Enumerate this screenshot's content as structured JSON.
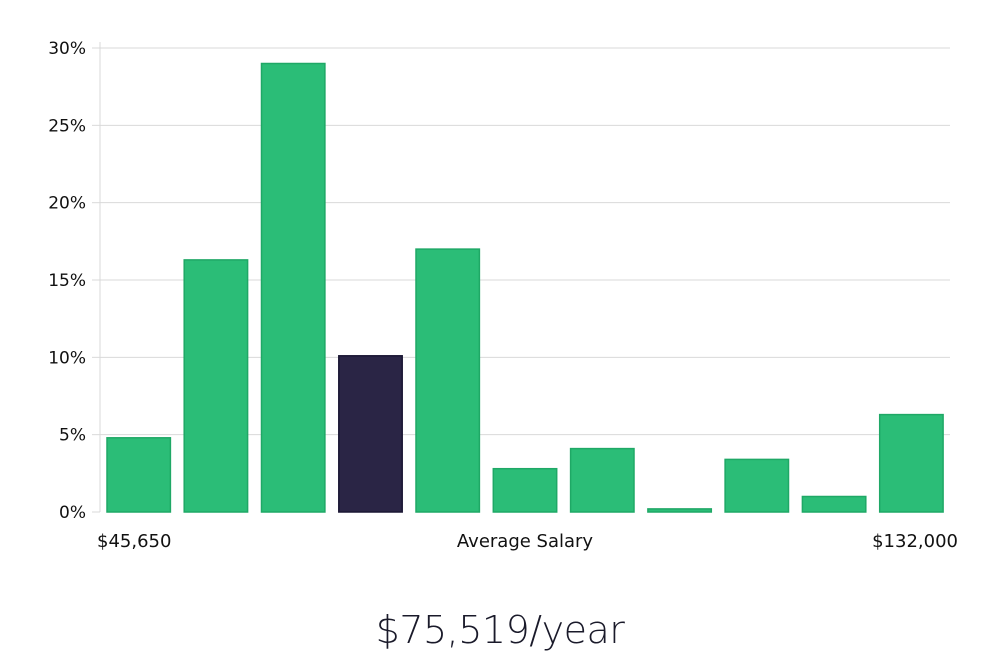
{
  "chart_data": {
    "type": "bar",
    "title": "",
    "xlabel": "Average Salary",
    "ylabel": "",
    "x_min_label": "$45,650",
    "x_max_label": "$132,000",
    "ylim": [
      0,
      30
    ],
    "yticks": [
      "0%",
      "5%",
      "10%",
      "15%",
      "20%",
      "25%",
      "30%"
    ],
    "grid": true,
    "values": [
      4.8,
      16.3,
      29.0,
      10.1,
      17.0,
      2.8,
      4.1,
      0.2,
      3.4,
      1.0,
      6.3
    ],
    "highlight_index": 3,
    "colors": {
      "bar": "#2bbd77",
      "bar_edge": "#1fa866",
      "highlight": "#2a2545",
      "grid": "#d9d9d9"
    }
  },
  "summary": {
    "average_salary": "$75,519/year"
  }
}
